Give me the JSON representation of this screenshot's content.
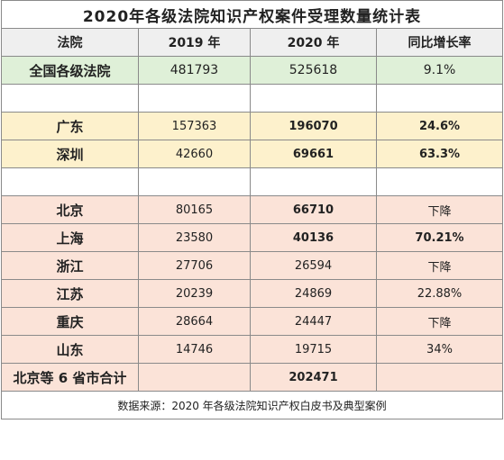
{
  "title": "2020年各级法院知识产权案件受理数量统计表",
  "headers": [
    "法院",
    "2019 年",
    "2020 年",
    "同比增长率"
  ],
  "total": {
    "court": "全国各级法院",
    "y2019": "481793",
    "y2020": "525618",
    "growth": "9.1%"
  },
  "group1": [
    {
      "court": "广东",
      "y2019": "157363",
      "y2020": "196070",
      "growth": "24.6%"
    },
    {
      "court": "深圳",
      "y2019": "42660",
      "y2020": "69661",
      "growth": "63.3%"
    }
  ],
  "group2": [
    {
      "court": "北京",
      "y2019": "80165",
      "y2020": "66710",
      "growth": "下降"
    },
    {
      "court": "上海",
      "y2019": "23580",
      "y2020": "40136",
      "growth": "70.21%"
    },
    {
      "court": "浙江",
      "y2019": "27706",
      "y2020": "26594",
      "growth": "下降"
    },
    {
      "court": "江苏",
      "y2019": "20239",
      "y2020": "24869",
      "growth": "22.88%"
    },
    {
      "court": "重庆",
      "y2019": "28664",
      "y2020": "24447",
      "growth": "下降"
    },
    {
      "court": "山东",
      "y2019": "14746",
      "y2020": "19715",
      "growth": "34%"
    }
  ],
  "subtotal": {
    "court": "北京等 6 省市合计",
    "y2020": "202471"
  },
  "source": "数据来源：2020 年各级法院知识产权白皮书及典型案例"
}
